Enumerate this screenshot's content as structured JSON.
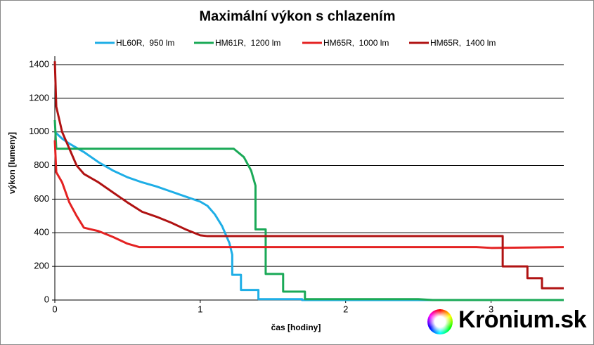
{
  "chart_data": {
    "type": "line",
    "title": "Maximální výkon s chlazením",
    "x_label": "čas [hodiny]",
    "y_label": "výkon [lumeny]",
    "watermark": "Kronium.sk",
    "xlim": [
      0,
      3.5
    ],
    "xticks": [
      0,
      1,
      2,
      3
    ],
    "ylim": [
      0,
      1450
    ],
    "yticks": [
      0,
      200,
      400,
      600,
      800,
      1000,
      1200,
      1400
    ],
    "grid": true,
    "legend": "top",
    "series": [
      {
        "name": "HL60R,  950 lm",
        "color": "#1eaee6",
        "x": [
          0,
          0.05,
          0.1,
          0.2,
          0.3,
          0.4,
          0.5,
          0.6,
          0.7,
          0.8,
          0.9,
          1.0,
          1.05,
          1.1,
          1.15,
          1.2,
          1.22,
          1.22,
          1.28,
          1.28,
          1.4,
          1.4,
          1.7,
          1.7,
          3.5
        ],
        "values": [
          1000,
          960,
          930,
          880,
          820,
          770,
          730,
          700,
          675,
          645,
          615,
          585,
          560,
          510,
          440,
          340,
          270,
          150,
          150,
          60,
          60,
          5,
          5,
          0,
          0
        ]
      },
      {
        "name": "HM61R,  1200 lm",
        "color": "#1aa957",
        "x": [
          0,
          0.01,
          1.23,
          1.3,
          1.35,
          1.38,
          1.38,
          1.45,
          1.45,
          1.57,
          1.57,
          1.72,
          1.72,
          2.5,
          2.6,
          3.5
        ],
        "values": [
          1070,
          900,
          900,
          850,
          770,
          680,
          420,
          420,
          155,
          155,
          50,
          50,
          5,
          5,
          0,
          0
        ]
      },
      {
        "name": "HM65R,  1000 lm",
        "color": "#e42222",
        "x": [
          0,
          0.01,
          0.05,
          0.1,
          0.15,
          0.2,
          0.3,
          0.4,
          0.5,
          0.58,
          2.9,
          3.0,
          3.5
        ],
        "values": [
          950,
          760,
          700,
          580,
          500,
          430,
          410,
          375,
          335,
          315,
          315,
          310,
          315
        ]
      },
      {
        "name": "HM65R,  1400 lm",
        "color": "#b01212",
        "x": [
          0,
          0.01,
          0.05,
          0.1,
          0.15,
          0.2,
          0.3,
          0.4,
          0.5,
          0.6,
          0.7,
          0.8,
          0.9,
          1.0,
          1.05,
          3.08,
          3.08,
          3.25,
          3.25,
          3.35,
          3.35,
          3.5
        ],
        "values": [
          1420,
          1150,
          1000,
          900,
          800,
          750,
          700,
          640,
          580,
          525,
          495,
          460,
          420,
          385,
          380,
          380,
          200,
          200,
          130,
          130,
          70,
          70
        ]
      }
    ]
  }
}
